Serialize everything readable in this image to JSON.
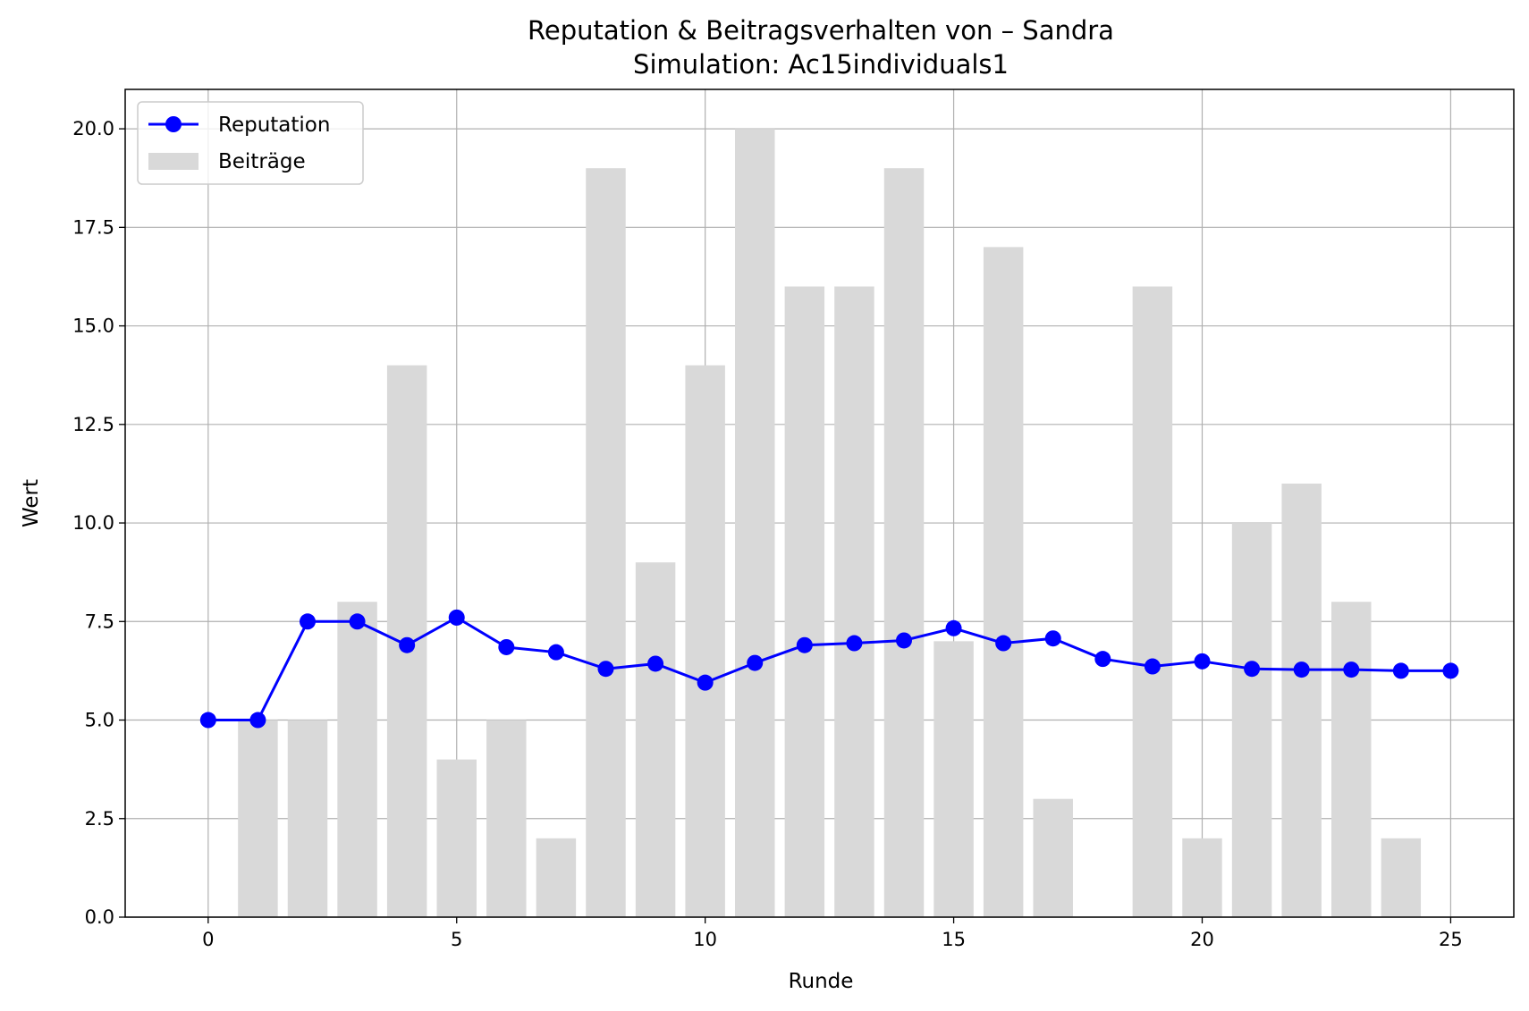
{
  "chart_data": {
    "type": "bar",
    "title": "Reputation & Beitragsverhalten von – Sandra",
    "subtitle": "Simulation: Ac15individuals1",
    "xlabel": "Runde",
    "ylabel": "Wert",
    "xlim": [
      -1.67,
      26.27
    ],
    "ylim": [
      0,
      21
    ],
    "xticks": [
      0,
      5,
      10,
      15,
      20,
      25
    ],
    "xtick_labels": [
      "0",
      "5",
      "10",
      "15",
      "20",
      "25"
    ],
    "yticks": [
      0,
      2.5,
      5,
      7.5,
      10,
      12.5,
      15,
      17.5,
      20
    ],
    "ytick_labels": [
      "0.0",
      "2.5",
      "5.0",
      "7.5",
      "10.0",
      "12.5",
      "15.0",
      "17.5",
      "20.0"
    ],
    "grid": true,
    "legend_position": "top-left",
    "series": [
      {
        "name": "Reputation",
        "kind": "line",
        "color": "#0000ff",
        "marker": "circle",
        "x": [
          0,
          1,
          2,
          3,
          4,
          5,
          6,
          7,
          8,
          9,
          10,
          11,
          12,
          13,
          14,
          15,
          16,
          17,
          18,
          19,
          20,
          21,
          22,
          23,
          24,
          25
        ],
        "values": [
          5.0,
          5.0,
          7.5,
          7.5,
          6.9,
          7.6,
          6.85,
          6.72,
          6.3,
          6.43,
          5.95,
          6.45,
          6.9,
          6.95,
          7.02,
          7.33,
          6.95,
          7.07,
          6.55,
          6.36,
          6.49,
          6.3,
          6.28,
          6.28,
          6.25,
          6.25
        ]
      },
      {
        "name": "Beiträge",
        "kind": "bar",
        "color": "#d9d9d9",
        "x": [
          1,
          2,
          3,
          4,
          5,
          6,
          7,
          8,
          9,
          10,
          11,
          12,
          13,
          14,
          15,
          16,
          17,
          18,
          19,
          20,
          21,
          22,
          23,
          24
        ],
        "values": [
          5,
          5,
          8,
          14,
          4,
          5,
          2,
          19,
          9,
          14,
          20,
          16,
          16,
          19,
          7,
          17,
          3,
          0,
          16,
          2,
          10,
          11,
          8,
          2
        ]
      }
    ]
  }
}
